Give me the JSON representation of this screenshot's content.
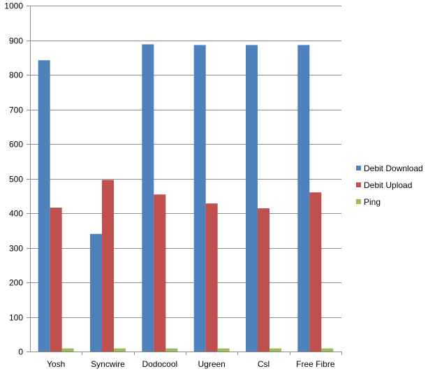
{
  "chart_data": {
    "type": "bar",
    "categories": [
      "Yosh",
      "Syncwire",
      "Dodocool",
      "Ugreen",
      "Csl",
      "Free Fibre"
    ],
    "series": [
      {
        "name": "Debit Download",
        "color": "#4F81BD",
        "values": [
          842,
          340,
          888,
          886,
          886,
          886
        ]
      },
      {
        "name": "Debit Upload",
        "color": "#C0504D",
        "values": [
          416,
          496,
          454,
          428,
          414,
          460
        ]
      },
      {
        "name": "Ping",
        "color": "#9BBB59",
        "values": [
          9,
          9,
          9,
          9,
          9,
          9
        ]
      }
    ],
    "ylim": [
      0,
      1000
    ],
    "yticks": [
      0,
      100,
      200,
      300,
      400,
      500,
      600,
      700,
      800,
      900,
      1000
    ],
    "grid": true,
    "legend_position": "right"
  }
}
